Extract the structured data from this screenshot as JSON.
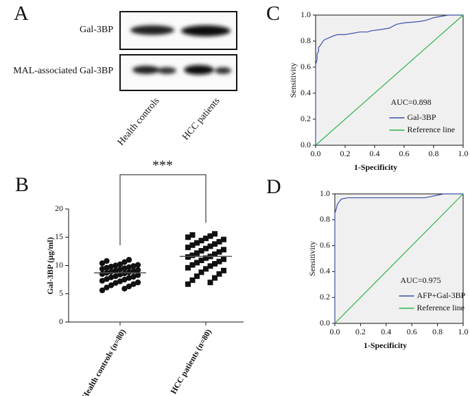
{
  "chart_data": [
    {
      "type": "blot",
      "label": "A",
      "rows": [
        "Gal-3BP",
        "MAL-associated Gal-3BP"
      ],
      "lanes": [
        "Health controls",
        "HCC patients"
      ]
    },
    {
      "type": "dotplot",
      "label": "B",
      "y_label": "Gal-3BP (μg/ml)",
      "categories": [
        "Health controls (n=80)",
        "HCC patients (n=80)"
      ],
      "markers": [
        "circle",
        "square"
      ],
      "groups": [
        [
          5.6,
          5.9,
          6.1,
          6.3,
          6.5,
          6.7,
          6.9,
          7.0,
          7.2,
          7.3,
          7.5,
          7.6,
          7.8,
          7.9,
          8.0,
          8.1,
          8.3,
          8.4,
          8.5,
          8.6,
          8.7,
          8.8,
          8.9,
          9.0,
          9.1,
          9.2,
          9.3,
          9.4,
          9.5,
          9.6,
          9.7,
          9.8,
          9.9,
          10.0,
          10.1,
          10.2,
          10.4,
          10.6,
          10.8,
          11.0
        ],
        [
          6.7,
          7.0,
          7.4,
          7.8,
          8.1,
          8.5,
          8.8,
          9.1,
          9.4,
          9.6,
          9.9,
          10.1,
          10.3,
          10.5,
          10.7,
          10.9,
          11.1,
          11.3,
          11.5,
          11.6,
          11.8,
          12.0,
          12.2,
          12.4,
          12.6,
          12.8,
          13.0,
          13.2,
          13.4,
          13.6,
          13.8,
          14.0,
          14.2,
          14.4,
          14.6,
          14.8,
          15.0,
          15.2,
          15.4,
          15.6
        ]
      ],
      "means": [
        8.7,
        11.6
      ],
      "significance": "***",
      "ylim": [
        0,
        20
      ],
      "yticks": [
        0,
        5,
        10,
        15,
        20
      ]
    },
    {
      "type": "roc",
      "label": "C",
      "annotation": "AUC=0.898",
      "x_label": "1-Specificity",
      "y_label": "Sensitivity",
      "series": [
        {
          "name": "Gal-3BP",
          "color": "#3b4fa8",
          "x": [
            0,
            0,
            0.01,
            0.01,
            0.02,
            0.02,
            0.04,
            0.05,
            0.06,
            0.08,
            0.1,
            0.12,
            0.15,
            0.2,
            0.25,
            0.3,
            0.35,
            0.38,
            0.45,
            0.5,
            0.55,
            0.6,
            0.7,
            0.75,
            0.8,
            0.85,
            0.9,
            1
          ],
          "values": [
            0,
            0.62,
            0.66,
            0.7,
            0.72,
            0.75,
            0.78,
            0.8,
            0.81,
            0.82,
            0.83,
            0.84,
            0.85,
            0.85,
            0.86,
            0.87,
            0.87,
            0.88,
            0.89,
            0.9,
            0.93,
            0.94,
            0.95,
            0.96,
            0.98,
            0.99,
            1,
            1
          ]
        },
        {
          "name": "Reference line",
          "color": "#2db34a",
          "x": [
            0,
            1
          ],
          "values": [
            0,
            1
          ]
        }
      ],
      "xlim": [
        0,
        1
      ],
      "ylim": [
        0,
        1
      ],
      "xticks": [
        {
          "value": 0,
          "label": "0.0"
        },
        0.2,
        0.4,
        0.6,
        0.8,
        {
          "value": 1,
          "label": "1.0"
        }
      ],
      "yticks": [
        {
          "value": 0,
          "label": "0.0"
        },
        0.2,
        0.4,
        0.6,
        0.8,
        {
          "value": 1,
          "label": "1.0"
        }
      ]
    },
    {
      "type": "roc",
      "label": "D",
      "annotation": "AUC=0.975",
      "x_label": "1-Specificity",
      "y_label": "Sensitivity",
      "series": [
        {
          "name": "AFP+Gal-3BP",
          "color": "#3b4fa8",
          "x": [
            0,
            0,
            0.01,
            0.02,
            0.05,
            0.1,
            0.3,
            0.5,
            0.7,
            0.75,
            0.8,
            0.85,
            1
          ],
          "values": [
            0,
            0.85,
            0.88,
            0.92,
            0.96,
            0.97,
            0.97,
            0.97,
            0.97,
            0.98,
            0.99,
            1,
            1
          ]
        },
        {
          "name": "Reference line",
          "color": "#2db34a",
          "x": [
            0,
            1
          ],
          "values": [
            0,
            1
          ]
        }
      ],
      "xlim": [
        0,
        1
      ],
      "ylim": [
        0,
        1
      ],
      "xticks": [
        {
          "value": 0,
          "label": "0.0"
        },
        0.2,
        0.4,
        0.6,
        0.8,
        {
          "value": 1,
          "label": "1.0"
        }
      ],
      "yticks": [
        {
          "value": 0,
          "label": "0.0"
        },
        0.2,
        0.4,
        0.6,
        0.8,
        {
          "value": 1,
          "label": "1.0"
        }
      ]
    }
  ]
}
